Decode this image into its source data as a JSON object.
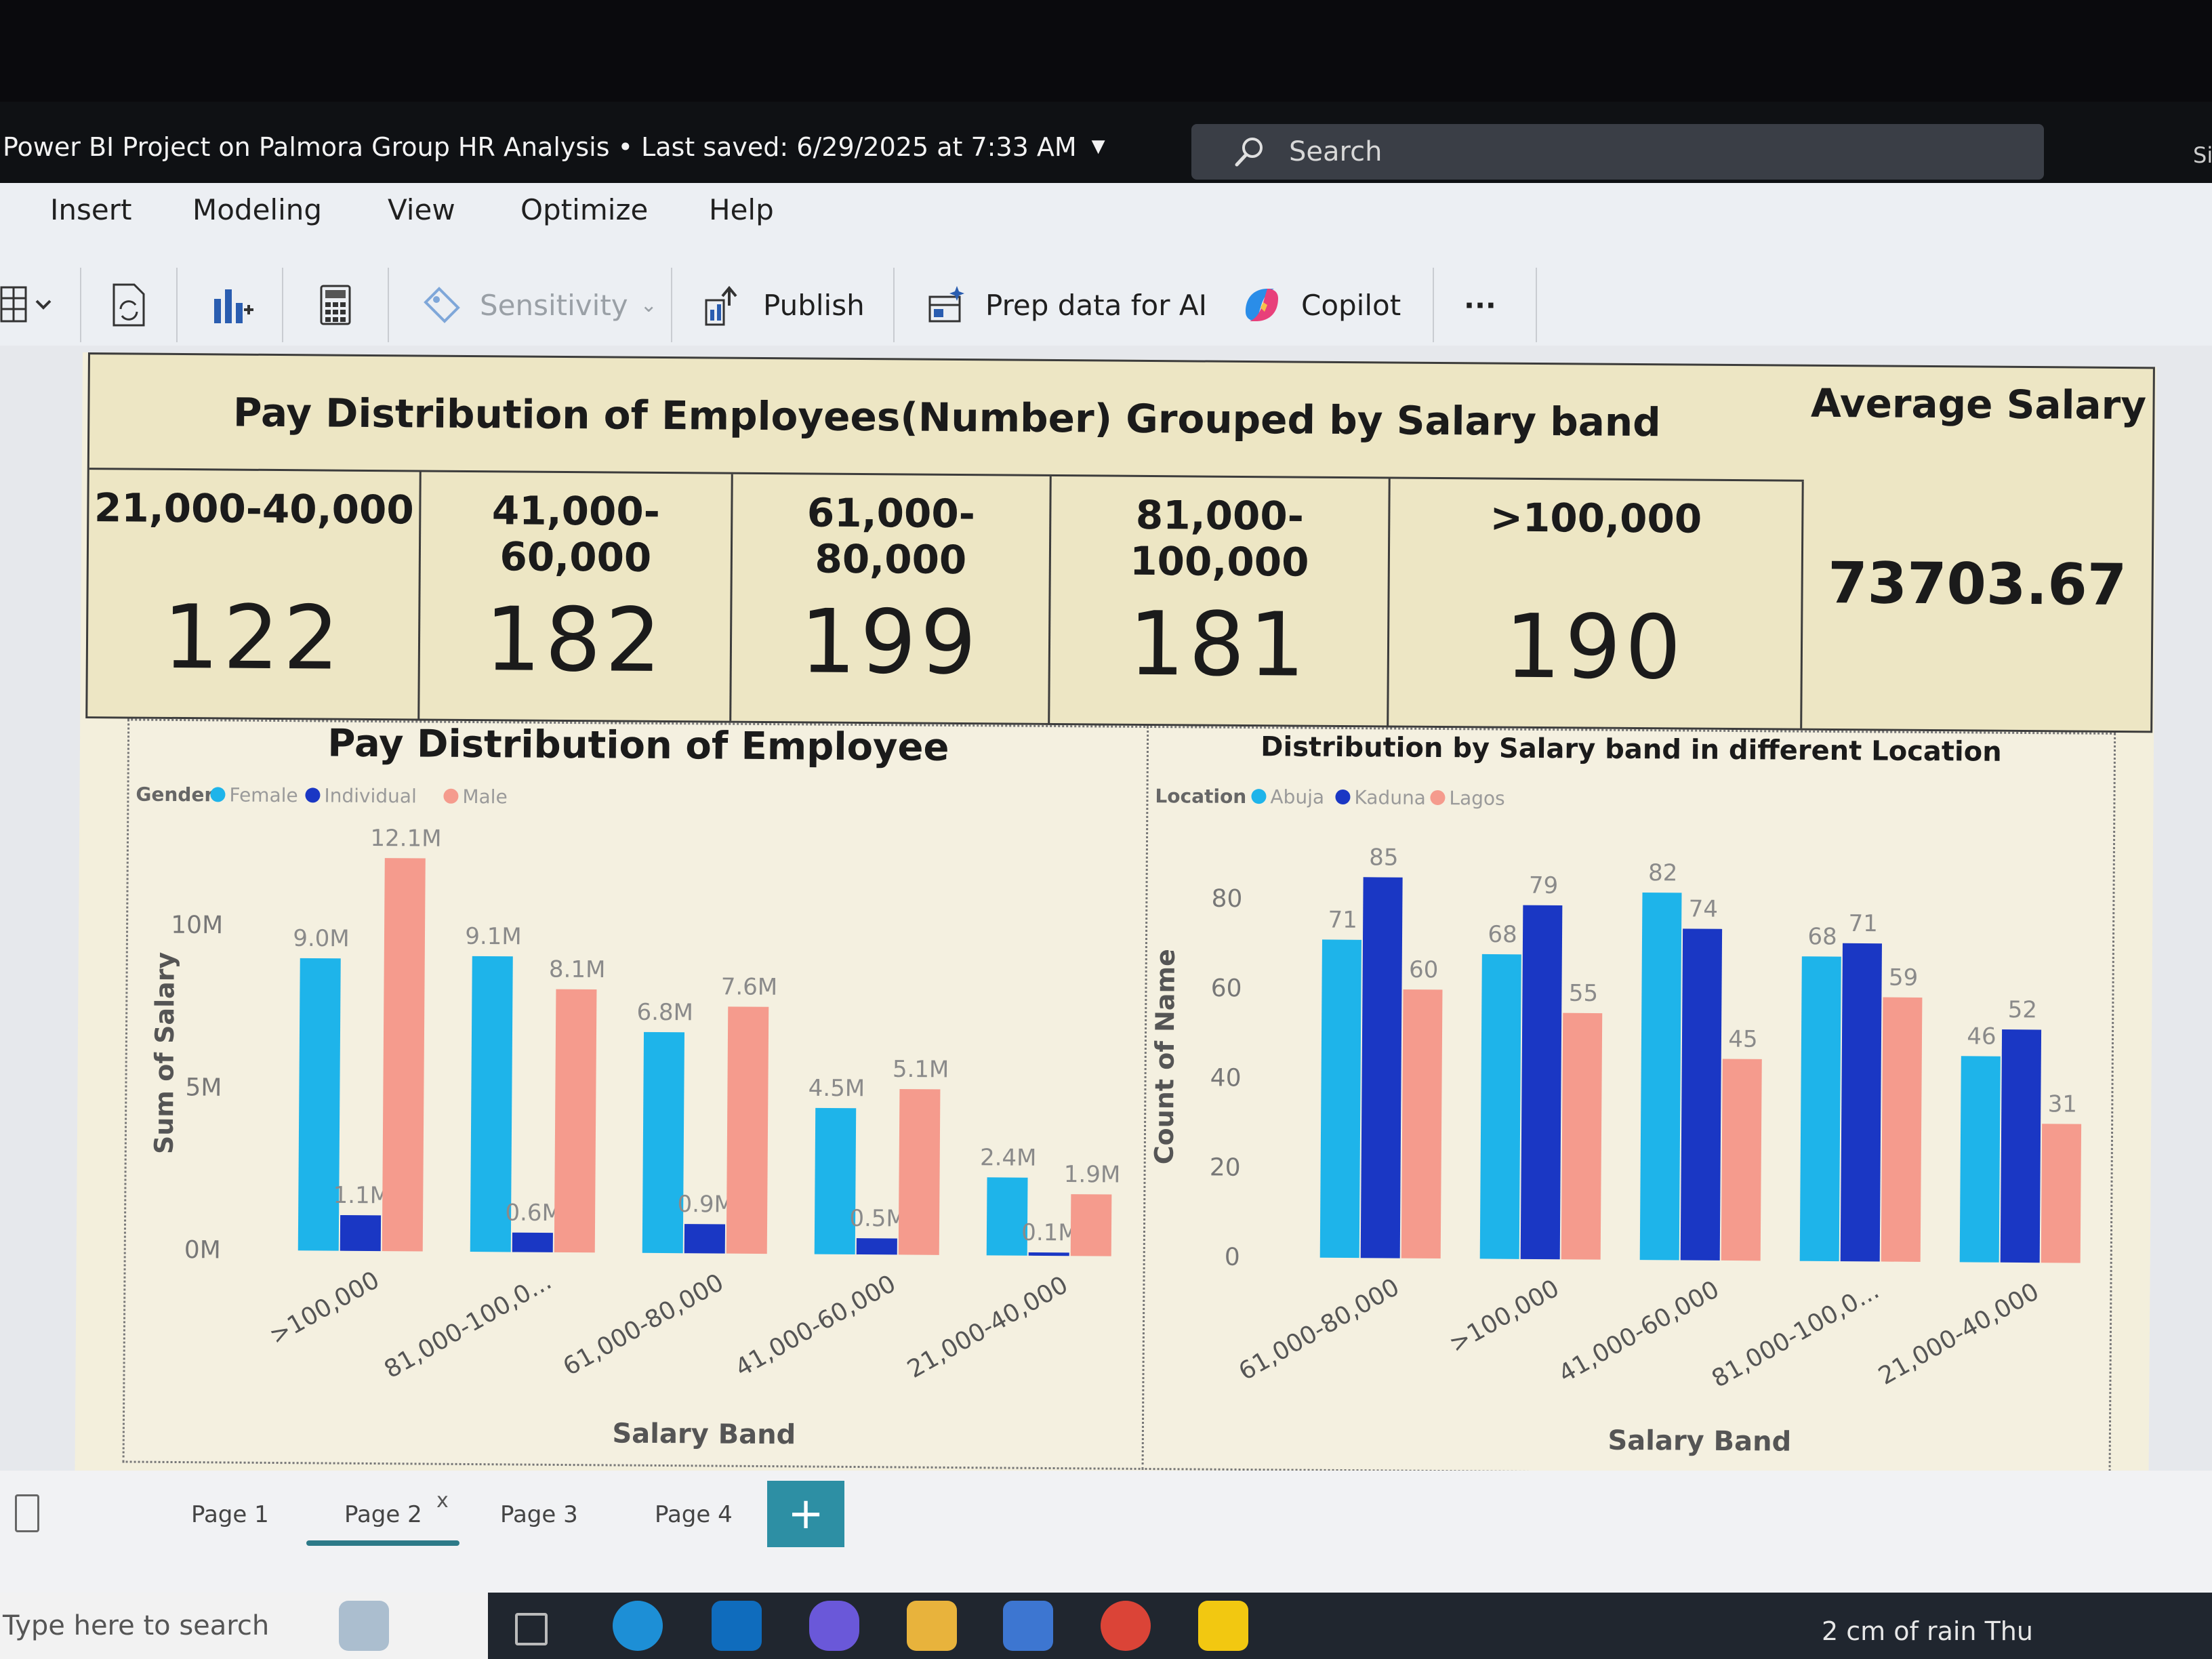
{
  "window": {
    "title": "Power BI Project on Palmora Group HR Analysis • Last saved: 6/29/2025 at 7:33 AM",
    "search_placeholder": "Search",
    "edge_text": "Si"
  },
  "ribbon": {
    "menu": [
      "Insert",
      "Modeling",
      "View",
      "Optimize",
      "Help"
    ],
    "sensitivity_label": "Sensitivity",
    "publish_label": "Publish",
    "prep_label": "Prep data for AI",
    "copilot_label": "Copilot",
    "more_label": "···"
  },
  "report": {
    "kpi_title": "Pay Distribution of Employees(Number) Grouped by Salary band",
    "kpis": [
      {
        "label": "21,000-40,000",
        "value": "122"
      },
      {
        "label": "41,000-60,000",
        "value": "182"
      },
      {
        "label": "61,000-80,000",
        "value": "199"
      },
      {
        "label": "81,000-100,000",
        "value": "181"
      },
      {
        "label": ">100,000",
        "value": "190"
      }
    ],
    "avg_salary_label": "Average Salary",
    "avg_salary_value": "73703.67"
  },
  "chart_data": [
    {
      "type": "bar",
      "title": "Pay Distribution of Employee",
      "legend_title": "Gender",
      "legend_position": "top-left",
      "xlabel": "Salary Band",
      "ylabel": "Sum of Salary",
      "ylim": [
        0,
        12100000
      ],
      "yticks": [
        "0M",
        "5M",
        "10M"
      ],
      "categories": [
        ">100,000",
        "81,000-100,0...",
        "61,000-80,000",
        "41,000-60,000",
        "21,000-40,000"
      ],
      "series": [
        {
          "name": "Female",
          "color": "#1eb4ea",
          "values": [
            9.0,
            9.1,
            6.8,
            4.5,
            2.4
          ],
          "labels": [
            "9.0M",
            "9.1M",
            "6.8M",
            "4.5M",
            "2.4M"
          ]
        },
        {
          "name": "Individual",
          "color": "#1a37c4",
          "values": [
            1.1,
            0.6,
            0.9,
            0.5,
            0.1
          ],
          "labels": [
            "1.1M",
            "0.6M",
            "0.9M",
            "0.5M",
            "0.1M"
          ]
        },
        {
          "name": "Male",
          "color": "#f59b8d",
          "values": [
            12.1,
            8.1,
            7.6,
            5.1,
            1.9
          ],
          "labels": [
            "12.1M",
            "8.1M",
            "7.6M",
            "5.1M",
            "1.9M"
          ]
        }
      ],
      "grid": false
    },
    {
      "type": "bar",
      "title": "Distribution by Salary band in different Location",
      "legend_title": "Location",
      "legend_position": "top-left",
      "xlabel": "Salary Band",
      "ylabel": "Count of Name",
      "ylim": [
        0,
        85
      ],
      "yticks": [
        "0",
        "20",
        "40",
        "60",
        "80"
      ],
      "categories": [
        "61,000-80,000",
        ">100,000",
        "41,000-60,000",
        "81,000-100,0...",
        "21,000-40,000"
      ],
      "series": [
        {
          "name": "Abuja",
          "color": "#1eb4ea",
          "values": [
            71,
            68,
            82,
            68,
            46
          ]
        },
        {
          "name": "Kaduna",
          "color": "#1a37c4",
          "values": [
            85,
            79,
            74,
            71,
            52
          ]
        },
        {
          "name": "Lagos",
          "color": "#f59b8d",
          "values": [
            60,
            55,
            45,
            59,
            31
          ]
        }
      ],
      "grid": false
    }
  ],
  "pages": {
    "tabs": [
      "Page 1",
      "Page 2",
      "Page 3",
      "Page 4"
    ],
    "active": "Page 2",
    "add_label": "+",
    "close_label": "x"
  },
  "taskbar": {
    "search_placeholder": "Type here to search",
    "weather": "2 cm of rain Thu"
  }
}
